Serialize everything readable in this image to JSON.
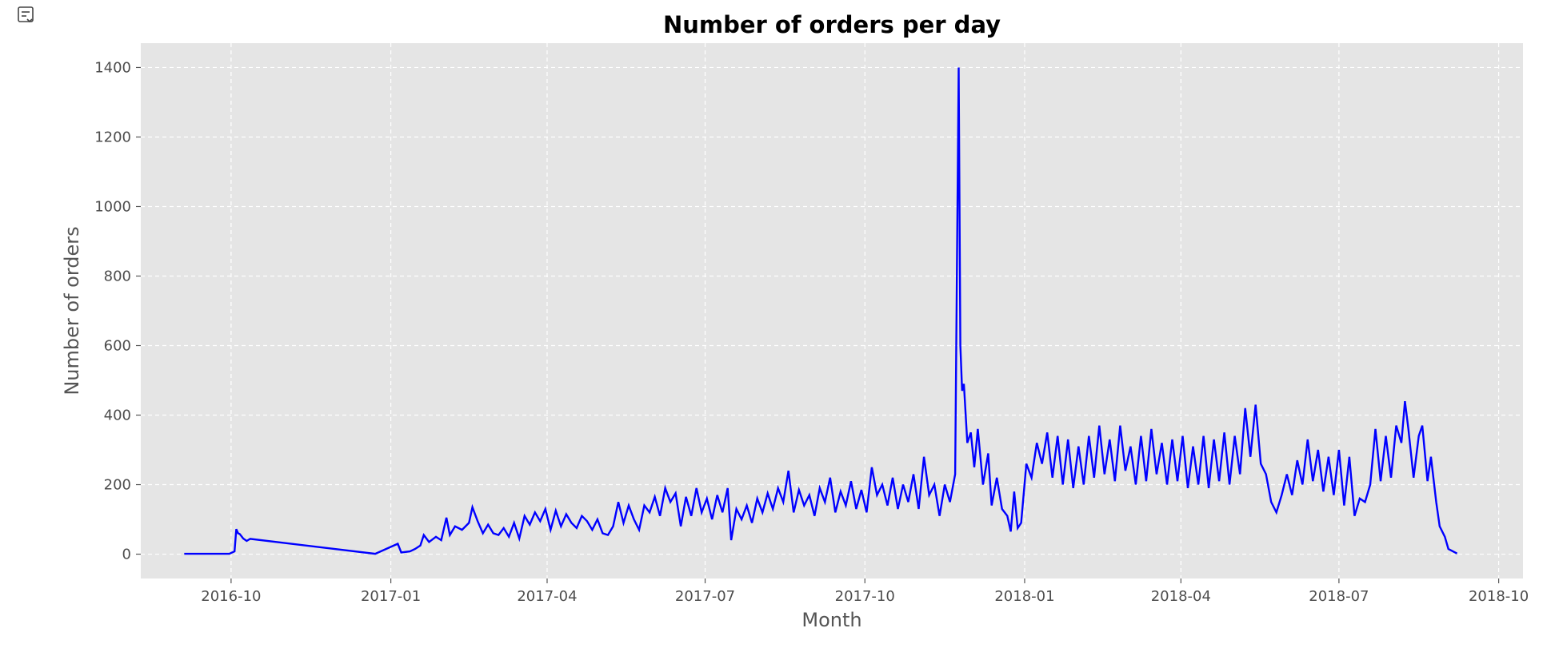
{
  "toolbar": {
    "icon": "output-toggle-icon"
  },
  "colors": {
    "plot_background": "#e5e5e5",
    "grid": "#ffffff",
    "line": "#0000ff",
    "tick_text": "#4d4d4d",
    "axis_label_text": "#555555"
  },
  "chart_data": {
    "type": "line",
    "title": "Number of orders per day",
    "xlabel": "Month",
    "ylabel": "Number of orders",
    "x_axis": {
      "type": "date",
      "range": [
        "2016-08-10",
        "2018-10-15"
      ],
      "ticks": [
        "2016-10-01",
        "2017-01-01",
        "2017-04-01",
        "2017-07-01",
        "2017-10-01",
        "2018-01-01",
        "2018-04-01",
        "2018-07-01",
        "2018-10-01"
      ],
      "tick_labels": [
        "2016-10",
        "2017-01",
        "2017-04",
        "2017-07",
        "2017-10",
        "2018-01",
        "2018-04",
        "2018-07",
        "2018-10"
      ]
    },
    "y_axis": {
      "range": [
        -70,
        1470
      ],
      "ticks": [
        0,
        200,
        400,
        600,
        800,
        1000,
        1200,
        1400
      ],
      "tick_labels": [
        "0",
        "200",
        "400",
        "600",
        "800",
        "1000",
        "1200",
        "1400"
      ]
    },
    "grid": true,
    "grid_style": "dashed",
    "series": [
      {
        "name": "",
        "color": "#0000ff",
        "points": [
          [
            "2016-09-04",
            1
          ],
          [
            "2016-09-30",
            1
          ],
          [
            "2016-10-03",
            8
          ],
          [
            "2016-10-04",
            72
          ],
          [
            "2016-10-05",
            60
          ],
          [
            "2016-10-06",
            58
          ],
          [
            "2016-10-08",
            45
          ],
          [
            "2016-10-10",
            38
          ],
          [
            "2016-10-12",
            44
          ],
          [
            "2016-12-23",
            1
          ],
          [
            "2017-01-05",
            30
          ],
          [
            "2017-01-07",
            5
          ],
          [
            "2017-01-12",
            8
          ],
          [
            "2017-01-15",
            15
          ],
          [
            "2017-01-18",
            25
          ],
          [
            "2017-01-20",
            55
          ],
          [
            "2017-01-23",
            35
          ],
          [
            "2017-01-27",
            50
          ],
          [
            "2017-01-30",
            40
          ],
          [
            "2017-02-02",
            105
          ],
          [
            "2017-02-04",
            55
          ],
          [
            "2017-02-07",
            80
          ],
          [
            "2017-02-11",
            70
          ],
          [
            "2017-02-15",
            90
          ],
          [
            "2017-02-17",
            135
          ],
          [
            "2017-02-20",
            95
          ],
          [
            "2017-02-23",
            60
          ],
          [
            "2017-02-26",
            85
          ],
          [
            "2017-03-01",
            60
          ],
          [
            "2017-03-04",
            55
          ],
          [
            "2017-03-07",
            75
          ],
          [
            "2017-03-10",
            50
          ],
          [
            "2017-03-13",
            90
          ],
          [
            "2017-03-16",
            45
          ],
          [
            "2017-03-19",
            110
          ],
          [
            "2017-03-22",
            85
          ],
          [
            "2017-03-25",
            120
          ],
          [
            "2017-03-28",
            95
          ],
          [
            "2017-03-31",
            130
          ],
          [
            "2017-04-03",
            70
          ],
          [
            "2017-04-06",
            125
          ],
          [
            "2017-04-09",
            80
          ],
          [
            "2017-04-12",
            115
          ],
          [
            "2017-04-15",
            90
          ],
          [
            "2017-04-18",
            75
          ],
          [
            "2017-04-21",
            110
          ],
          [
            "2017-04-24",
            95
          ],
          [
            "2017-04-27",
            70
          ],
          [
            "2017-04-30",
            100
          ],
          [
            "2017-05-03",
            60
          ],
          [
            "2017-05-06",
            55
          ],
          [
            "2017-05-09",
            80
          ],
          [
            "2017-05-12",
            150
          ],
          [
            "2017-05-15",
            90
          ],
          [
            "2017-05-18",
            140
          ],
          [
            "2017-05-21",
            100
          ],
          [
            "2017-05-24",
            70
          ],
          [
            "2017-05-27",
            140
          ],
          [
            "2017-05-30",
            120
          ],
          [
            "2017-06-02",
            165
          ],
          [
            "2017-06-05",
            110
          ],
          [
            "2017-06-08",
            190
          ],
          [
            "2017-06-11",
            150
          ],
          [
            "2017-06-14",
            175
          ],
          [
            "2017-06-17",
            80
          ],
          [
            "2017-06-20",
            165
          ],
          [
            "2017-06-23",
            110
          ],
          [
            "2017-06-26",
            190
          ],
          [
            "2017-06-29",
            120
          ],
          [
            "2017-07-02",
            160
          ],
          [
            "2017-07-05",
            100
          ],
          [
            "2017-07-08",
            170
          ],
          [
            "2017-07-11",
            120
          ],
          [
            "2017-07-14",
            190
          ],
          [
            "2017-07-16",
            40
          ],
          [
            "2017-07-19",
            130
          ],
          [
            "2017-07-22",
            100
          ],
          [
            "2017-07-25",
            140
          ],
          [
            "2017-07-28",
            90
          ],
          [
            "2017-07-31",
            160
          ],
          [
            "2017-08-03",
            120
          ],
          [
            "2017-08-06",
            175
          ],
          [
            "2017-08-09",
            130
          ],
          [
            "2017-08-12",
            190
          ],
          [
            "2017-08-15",
            150
          ],
          [
            "2017-08-18",
            240
          ],
          [
            "2017-08-21",
            120
          ],
          [
            "2017-08-24",
            185
          ],
          [
            "2017-08-27",
            140
          ],
          [
            "2017-08-30",
            170
          ],
          [
            "2017-09-02",
            110
          ],
          [
            "2017-09-05",
            190
          ],
          [
            "2017-09-08",
            150
          ],
          [
            "2017-09-11",
            220
          ],
          [
            "2017-09-14",
            120
          ],
          [
            "2017-09-17",
            180
          ],
          [
            "2017-09-20",
            140
          ],
          [
            "2017-09-23",
            210
          ],
          [
            "2017-09-26",
            130
          ],
          [
            "2017-09-29",
            185
          ],
          [
            "2017-10-02",
            120
          ],
          [
            "2017-10-05",
            250
          ],
          [
            "2017-10-08",
            170
          ],
          [
            "2017-10-11",
            200
          ],
          [
            "2017-10-14",
            140
          ],
          [
            "2017-10-17",
            220
          ],
          [
            "2017-10-20",
            130
          ],
          [
            "2017-10-23",
            200
          ],
          [
            "2017-10-26",
            150
          ],
          [
            "2017-10-29",
            230
          ],
          [
            "2017-11-01",
            130
          ],
          [
            "2017-11-04",
            280
          ],
          [
            "2017-11-07",
            170
          ],
          [
            "2017-11-10",
            200
          ],
          [
            "2017-11-13",
            110
          ],
          [
            "2017-11-16",
            200
          ],
          [
            "2017-11-19",
            150
          ],
          [
            "2017-11-22",
            230
          ],
          [
            "2017-11-24",
            1400
          ],
          [
            "2017-11-25",
            600
          ],
          [
            "2017-11-26",
            470
          ],
          [
            "2017-11-27",
            490
          ],
          [
            "2017-11-29",
            320
          ],
          [
            "2017-12-01",
            350
          ],
          [
            "2017-12-03",
            250
          ],
          [
            "2017-12-05",
            360
          ],
          [
            "2017-12-08",
            200
          ],
          [
            "2017-12-11",
            290
          ],
          [
            "2017-12-13",
            140
          ],
          [
            "2017-12-16",
            220
          ],
          [
            "2017-12-19",
            130
          ],
          [
            "2017-12-22",
            110
          ],
          [
            "2017-12-24",
            65
          ],
          [
            "2017-12-26",
            180
          ],
          [
            "2017-12-28",
            75
          ],
          [
            "2017-12-30",
            90
          ],
          [
            "2018-01-02",
            260
          ],
          [
            "2018-01-05",
            220
          ],
          [
            "2018-01-08",
            320
          ],
          [
            "2018-01-11",
            260
          ],
          [
            "2018-01-14",
            350
          ],
          [
            "2018-01-17",
            220
          ],
          [
            "2018-01-20",
            340
          ],
          [
            "2018-01-23",
            200
          ],
          [
            "2018-01-26",
            330
          ],
          [
            "2018-01-29",
            190
          ],
          [
            "2018-02-01",
            310
          ],
          [
            "2018-02-04",
            200
          ],
          [
            "2018-02-07",
            340
          ],
          [
            "2018-02-10",
            220
          ],
          [
            "2018-02-13",
            370
          ],
          [
            "2018-02-16",
            230
          ],
          [
            "2018-02-19",
            330
          ],
          [
            "2018-02-22",
            210
          ],
          [
            "2018-02-25",
            370
          ],
          [
            "2018-02-28",
            240
          ],
          [
            "2018-03-03",
            310
          ],
          [
            "2018-03-06",
            200
          ],
          [
            "2018-03-09",
            340
          ],
          [
            "2018-03-12",
            210
          ],
          [
            "2018-03-15",
            360
          ],
          [
            "2018-03-18",
            230
          ],
          [
            "2018-03-21",
            320
          ],
          [
            "2018-03-24",
            200
          ],
          [
            "2018-03-27",
            330
          ],
          [
            "2018-03-30",
            210
          ],
          [
            "2018-04-02",
            340
          ],
          [
            "2018-04-05",
            190
          ],
          [
            "2018-04-08",
            310
          ],
          [
            "2018-04-11",
            200
          ],
          [
            "2018-04-14",
            340
          ],
          [
            "2018-04-17",
            190
          ],
          [
            "2018-04-20",
            330
          ],
          [
            "2018-04-23",
            210
          ],
          [
            "2018-04-26",
            350
          ],
          [
            "2018-04-29",
            200
          ],
          [
            "2018-05-02",
            340
          ],
          [
            "2018-05-05",
            230
          ],
          [
            "2018-05-08",
            420
          ],
          [
            "2018-05-11",
            280
          ],
          [
            "2018-05-14",
            430
          ],
          [
            "2018-05-17",
            260
          ],
          [
            "2018-05-20",
            230
          ],
          [
            "2018-05-23",
            150
          ],
          [
            "2018-05-26",
            120
          ],
          [
            "2018-05-29",
            170
          ],
          [
            "2018-06-01",
            230
          ],
          [
            "2018-06-04",
            170
          ],
          [
            "2018-06-07",
            270
          ],
          [
            "2018-06-10",
            200
          ],
          [
            "2018-06-13",
            330
          ],
          [
            "2018-06-16",
            210
          ],
          [
            "2018-06-19",
            300
          ],
          [
            "2018-06-22",
            180
          ],
          [
            "2018-06-25",
            280
          ],
          [
            "2018-06-28",
            170
          ],
          [
            "2018-07-01",
            300
          ],
          [
            "2018-07-04",
            140
          ],
          [
            "2018-07-07",
            280
          ],
          [
            "2018-07-10",
            110
          ],
          [
            "2018-07-13",
            160
          ],
          [
            "2018-07-16",
            150
          ],
          [
            "2018-07-19",
            200
          ],
          [
            "2018-07-22",
            360
          ],
          [
            "2018-07-25",
            210
          ],
          [
            "2018-07-28",
            340
          ],
          [
            "2018-07-31",
            220
          ],
          [
            "2018-08-03",
            370
          ],
          [
            "2018-08-06",
            320
          ],
          [
            "2018-08-08",
            440
          ],
          [
            "2018-08-10",
            360
          ],
          [
            "2018-08-13",
            220
          ],
          [
            "2018-08-16",
            340
          ],
          [
            "2018-08-18",
            370
          ],
          [
            "2018-08-21",
            210
          ],
          [
            "2018-08-23",
            280
          ],
          [
            "2018-08-26",
            150
          ],
          [
            "2018-08-28",
            80
          ],
          [
            "2018-08-31",
            50
          ],
          [
            "2018-09-02",
            15
          ],
          [
            "2018-09-07",
            2
          ]
        ]
      }
    ]
  }
}
